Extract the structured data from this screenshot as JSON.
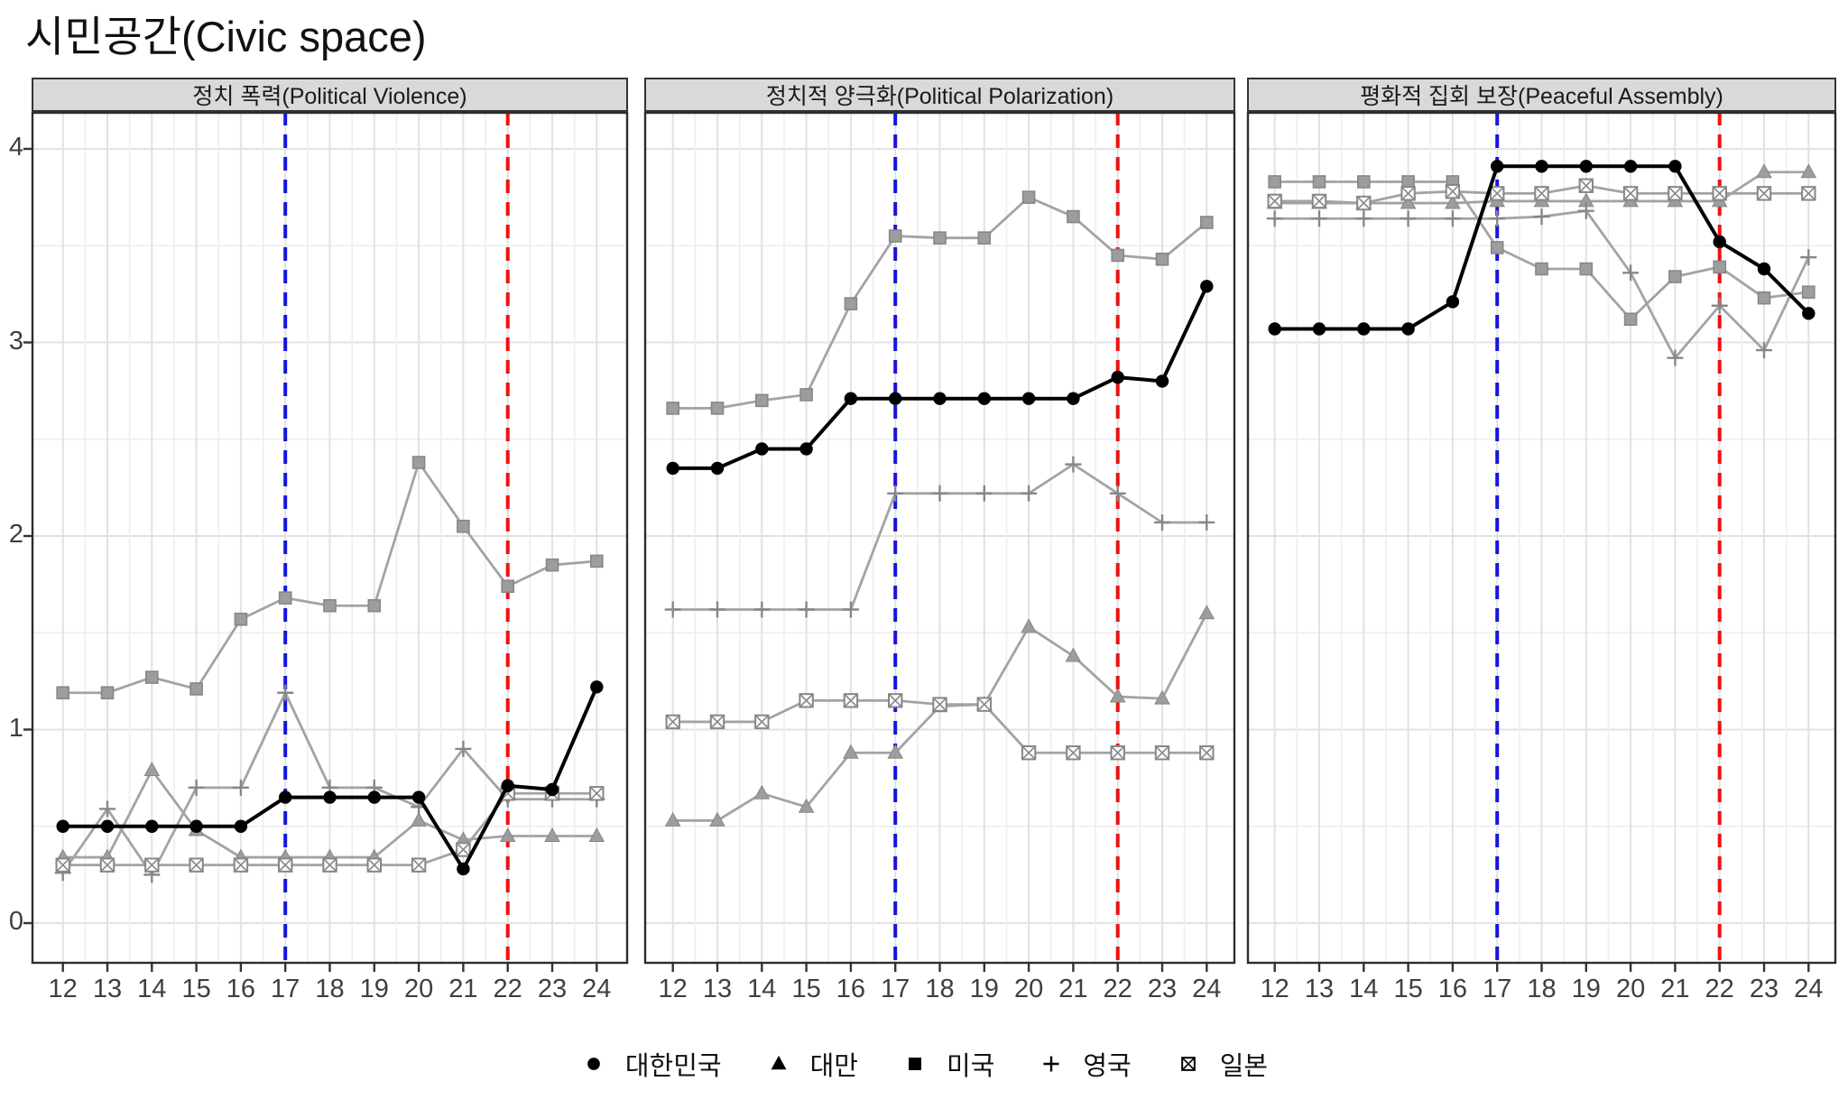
{
  "title": "시민공간(Civic space)",
  "axes": {
    "x_ticks": [
      "12",
      "13",
      "14",
      "15",
      "16",
      "17",
      "18",
      "19",
      "20",
      "21",
      "22",
      "23",
      "24"
    ],
    "y_ticks": [
      "0",
      "1",
      "2",
      "3",
      "4"
    ],
    "ylim": [
      0,
      4
    ]
  },
  "colors": {
    "highlight_series": "#000000",
    "gray_line": "#a3a3a3",
    "gray_marker_fill": "#9d9d9d",
    "gray_marker_stroke": "#878787",
    "blue_vline": "#1515dd",
    "red_vline": "#ee1111",
    "strip_bg": "#d9d9d9",
    "panel_border": "#2d2d2d",
    "grid_major": "#e2e2e2",
    "grid_minor": "#efefef",
    "axis_text": "#3f3f3f"
  },
  "legend": {
    "items": [
      {
        "label": "대한민국",
        "marker": "circle"
      },
      {
        "label": "대만",
        "marker": "triangle"
      },
      {
        "label": "미국",
        "marker": "square"
      },
      {
        "label": "영국",
        "marker": "plus"
      },
      {
        "label": "일본",
        "marker": "square-x"
      }
    ]
  },
  "vlines": [
    {
      "year": 17,
      "color_key": "blue_vline",
      "style": "dashed"
    },
    {
      "year": 22,
      "color_key": "red_vline",
      "style": "dashed"
    }
  ],
  "chart_data": {
    "type": "line",
    "x": [
      12,
      13,
      14,
      15,
      16,
      17,
      18,
      19,
      20,
      21,
      22,
      23,
      24
    ],
    "xlabel": "",
    "ylabel": "",
    "ylim": [
      0,
      4
    ],
    "yticks": [
      0,
      1,
      2,
      3,
      4
    ],
    "grid": true,
    "legend_position": "bottom",
    "panels": [
      {
        "label": "정치 폭력(Political Violence)",
        "series": [
          {
            "name": "대한민국",
            "marker": "circle",
            "highlight": true,
            "values": [
              0.5,
              0.5,
              0.5,
              0.5,
              0.5,
              0.65,
              0.65,
              0.65,
              0.65,
              0.28,
              0.71,
              0.69,
              1.22
            ]
          },
          {
            "name": "대만",
            "marker": "triangle",
            "highlight": false,
            "values": [
              0.34,
              0.34,
              0.79,
              0.48,
              0.34,
              0.34,
              0.34,
              0.34,
              0.53,
              0.43,
              0.45,
              0.45,
              0.45
            ]
          },
          {
            "name": "미국",
            "marker": "square",
            "highlight": false,
            "values": [
              1.19,
              1.19,
              1.27,
              1.21,
              1.57,
              1.68,
              1.64,
              1.64,
              2.38,
              2.05,
              1.74,
              1.85,
              1.87
            ]
          },
          {
            "name": "영국",
            "marker": "plus",
            "highlight": false,
            "values": [
              0.26,
              0.59,
              0.25,
              0.7,
              0.7,
              1.19,
              0.7,
              0.7,
              0.6,
              0.9,
              0.64,
              0.64,
              0.64
            ]
          },
          {
            "name": "일본",
            "marker": "square-x",
            "highlight": false,
            "values": [
              0.3,
              0.3,
              0.3,
              0.3,
              0.3,
              0.3,
              0.3,
              0.3,
              0.3,
              0.38,
              0.67,
              0.67,
              0.67
            ]
          }
        ]
      },
      {
        "label": "정치적 양극화(Political Polarization)",
        "series": [
          {
            "name": "대한민국",
            "marker": "circle",
            "highlight": true,
            "values": [
              2.35,
              2.35,
              2.45,
              2.45,
              2.71,
              2.71,
              2.71,
              2.71,
              2.71,
              2.71,
              2.82,
              2.8,
              3.29
            ]
          },
          {
            "name": "대만",
            "marker": "triangle",
            "highlight": false,
            "values": [
              0.53,
              0.53,
              0.67,
              0.6,
              0.88,
              0.88,
              1.12,
              1.13,
              1.53,
              1.38,
              1.17,
              1.16,
              1.6
            ]
          },
          {
            "name": "미국",
            "marker": "square",
            "highlight": false,
            "values": [
              2.66,
              2.66,
              2.7,
              2.73,
              3.2,
              3.55,
              3.54,
              3.54,
              3.75,
              3.65,
              3.45,
              3.43,
              3.62
            ]
          },
          {
            "name": "영국",
            "marker": "plus",
            "highlight": false,
            "values": [
              1.62,
              1.62,
              1.62,
              1.62,
              1.62,
              2.22,
              2.22,
              2.22,
              2.22,
              2.37,
              2.22,
              2.07,
              2.07
            ]
          },
          {
            "name": "일본",
            "marker": "square-x",
            "highlight": false,
            "values": [
              1.04,
              1.04,
              1.04,
              1.15,
              1.15,
              1.15,
              1.13,
              1.13,
              0.88,
              0.88,
              0.88,
              0.88,
              0.88
            ]
          }
        ]
      },
      {
        "label": "평화적 집회 보장(Peaceful Assembly)",
        "series": [
          {
            "name": "대한민국",
            "marker": "circle",
            "highlight": true,
            "values": [
              3.07,
              3.07,
              3.07,
              3.07,
              3.21,
              3.91,
              3.91,
              3.91,
              3.91,
              3.91,
              3.52,
              3.38,
              3.15
            ]
          },
          {
            "name": "대만",
            "marker": "triangle",
            "highlight": false,
            "values": [
              3.72,
              3.72,
              3.72,
              3.72,
              3.72,
              3.73,
              3.73,
              3.73,
              3.73,
              3.73,
              3.73,
              3.88,
              3.88
            ]
          },
          {
            "name": "미국",
            "marker": "square",
            "highlight": false,
            "values": [
              3.83,
              3.83,
              3.83,
              3.83,
              3.83,
              3.49,
              3.38,
              3.38,
              3.12,
              3.34,
              3.39,
              3.23,
              3.26
            ]
          },
          {
            "name": "영국",
            "marker": "plus",
            "highlight": false,
            "values": [
              3.64,
              3.64,
              3.64,
              3.64,
              3.64,
              3.64,
              3.65,
              3.68,
              3.36,
              2.92,
              3.19,
              2.96,
              3.44
            ]
          },
          {
            "name": "일본",
            "marker": "square-x",
            "highlight": false,
            "values": [
              3.73,
              3.73,
              3.72,
              3.77,
              3.78,
              3.77,
              3.77,
              3.81,
              3.77,
              3.77,
              3.77,
              3.77,
              3.77
            ]
          }
        ]
      }
    ]
  }
}
